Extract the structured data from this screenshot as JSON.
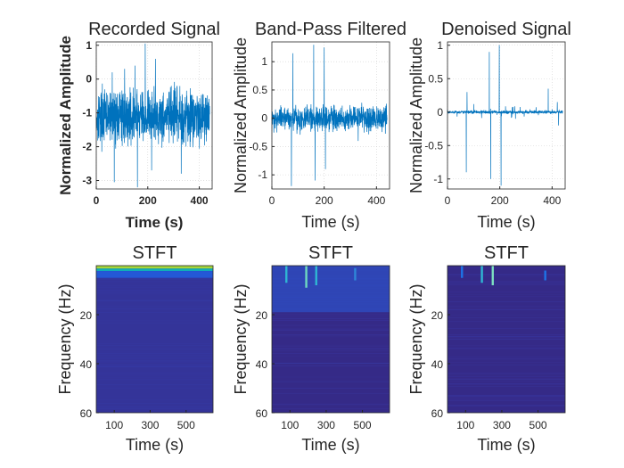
{
  "chart_data": [
    {
      "type": "line",
      "title": "Recorded Signal",
      "xlabel": "Time (s)",
      "ylabel": "Normalized Amplitude",
      "xlim": [
        0,
        450
      ],
      "ylim": [
        -3.25,
        1.1
      ],
      "xticks": [
        0,
        200,
        400
      ],
      "yticks": [
        1,
        0,
        -1,
        -2,
        -3
      ],
      "bold_labels": true,
      "color": "#0072BD",
      "band": {
        "center": -1.1,
        "half_width": 0.72
      },
      "spikes": [
        {
          "x": 62,
          "y": 0.2
        },
        {
          "x": 70,
          "y": -3.05
        },
        {
          "x": 150,
          "y": 0.4
        },
        {
          "x": 160,
          "y": -3.2
        },
        {
          "x": 190,
          "y": 1.05
        },
        {
          "x": 215,
          "y": -2.7
        },
        {
          "x": 230,
          "y": 0.6
        },
        {
          "x": 330,
          "y": -2.8
        },
        {
          "x": 110,
          "y": 0.3
        }
      ]
    },
    {
      "type": "line",
      "title": "Band-Pass Filtered",
      "xlabel": "Time (s)",
      "ylabel": "Normalized Amplitude",
      "xlim": [
        0,
        450
      ],
      "ylim": [
        -1.25,
        1.35
      ],
      "xticks": [
        0,
        200,
        400
      ],
      "yticks": [
        1,
        0.5,
        0,
        -0.5,
        -1
      ],
      "bold_labels": false,
      "color": "#0072BD",
      "band": {
        "center": 0.0,
        "half_width": 0.2
      },
      "spikes": [
        {
          "x": 75,
          "y": -1.2
        },
        {
          "x": 80,
          "y": 1.15
        },
        {
          "x": 160,
          "y": 1.3
        },
        {
          "x": 165,
          "y": -1.1
        },
        {
          "x": 200,
          "y": 1.25
        },
        {
          "x": 205,
          "y": -0.9
        },
        {
          "x": 330,
          "y": -0.4
        }
      ]
    },
    {
      "type": "line",
      "title": "Denoised Signal",
      "xlabel": "Time (s)",
      "ylabel": "Normalized Amplitude",
      "xlim": [
        0,
        450
      ],
      "ylim": [
        -1.15,
        1.05
      ],
      "xticks": [
        0,
        200,
        400
      ],
      "yticks": [
        1,
        0.5,
        0,
        -0.5,
        -1
      ],
      "bold_labels": false,
      "color": "#0072BD",
      "band": {
        "center": 0.0,
        "half_width": 0.02
      },
      "spikes": [
        {
          "x": 72,
          "y": -0.9
        },
        {
          "x": 75,
          "y": 0.3
        },
        {
          "x": 160,
          "y": 0.9
        },
        {
          "x": 165,
          "y": -1.0
        },
        {
          "x": 198,
          "y": 1.0
        },
        {
          "x": 205,
          "y": -1.1
        },
        {
          "x": 385,
          "y": 0.35
        },
        {
          "x": 420,
          "y": 0.15
        },
        {
          "x": 425,
          "y": -0.2
        },
        {
          "x": 100,
          "y": 0.12
        },
        {
          "x": 260,
          "y": -0.1
        }
      ]
    },
    {
      "type": "heatmap",
      "title": "STFT",
      "xlabel": "Time (s)",
      "ylabel": "Frequency (Hz)",
      "xlim": [
        0,
        650
      ],
      "ylim": [
        0,
        60
      ],
      "xticks": [
        100,
        300,
        500
      ],
      "yticks": [
        20,
        40,
        60
      ],
      "background": "#352A87",
      "features": [
        {
          "kind": "band",
          "f0": 0,
          "f1": 1.2,
          "color": "#A6D63B"
        },
        {
          "kind": "band",
          "f0": 1.2,
          "f1": 2.2,
          "color": "#0FAEB8"
        },
        {
          "kind": "band",
          "f0": 2.2,
          "f1": 5,
          "color": "#2458D6"
        },
        {
          "kind": "band",
          "f0": 5,
          "f1": 60,
          "color": "#3241B0",
          "opacity": 0.45
        }
      ]
    },
    {
      "type": "heatmap",
      "title": "STFT",
      "xlabel": "Time (s)",
      "ylabel": "Frequency (Hz)",
      "xlim": [
        0,
        650
      ],
      "ylim": [
        0,
        60
      ],
      "xticks": [
        100,
        300,
        500
      ],
      "yticks": [
        20,
        40,
        60
      ],
      "background": "#352A87",
      "features": [
        {
          "kind": "band",
          "f0": 0,
          "f1": 19,
          "color": "#2E4FC4",
          "opacity": 0.75
        },
        {
          "kind": "streak",
          "t": 80,
          "f0": 0,
          "f1": 7,
          "color": "#2FB6D3"
        },
        {
          "kind": "streak",
          "t": 190,
          "f0": 0,
          "f1": 9,
          "color": "#6DD8C0"
        },
        {
          "kind": "streak",
          "t": 245,
          "f0": 0,
          "f1": 8,
          "color": "#2FB6D3"
        },
        {
          "kind": "streak",
          "t": 460,
          "f0": 1,
          "f1": 6,
          "color": "#2F86D8"
        }
      ]
    },
    {
      "type": "heatmap",
      "title": "STFT",
      "xlabel": "Time (s)",
      "ylabel": "Frequency (Hz)",
      "xlim": [
        0,
        650
      ],
      "ylim": [
        0,
        60
      ],
      "xticks": [
        100,
        300,
        500
      ],
      "yticks": [
        20,
        40,
        60
      ],
      "background": "#352A87",
      "features": [
        {
          "kind": "streak",
          "t": 80,
          "f0": 0,
          "f1": 5,
          "color": "#1E73E6"
        },
        {
          "kind": "streak",
          "t": 190,
          "f0": 0,
          "f1": 7,
          "color": "#2FB6D3"
        },
        {
          "kind": "streak",
          "t": 250,
          "f0": 0,
          "f1": 8,
          "color": "#7DE0C0"
        },
        {
          "kind": "streak",
          "t": 540,
          "f0": 2,
          "f1": 6,
          "color": "#1E73E6"
        }
      ]
    }
  ]
}
